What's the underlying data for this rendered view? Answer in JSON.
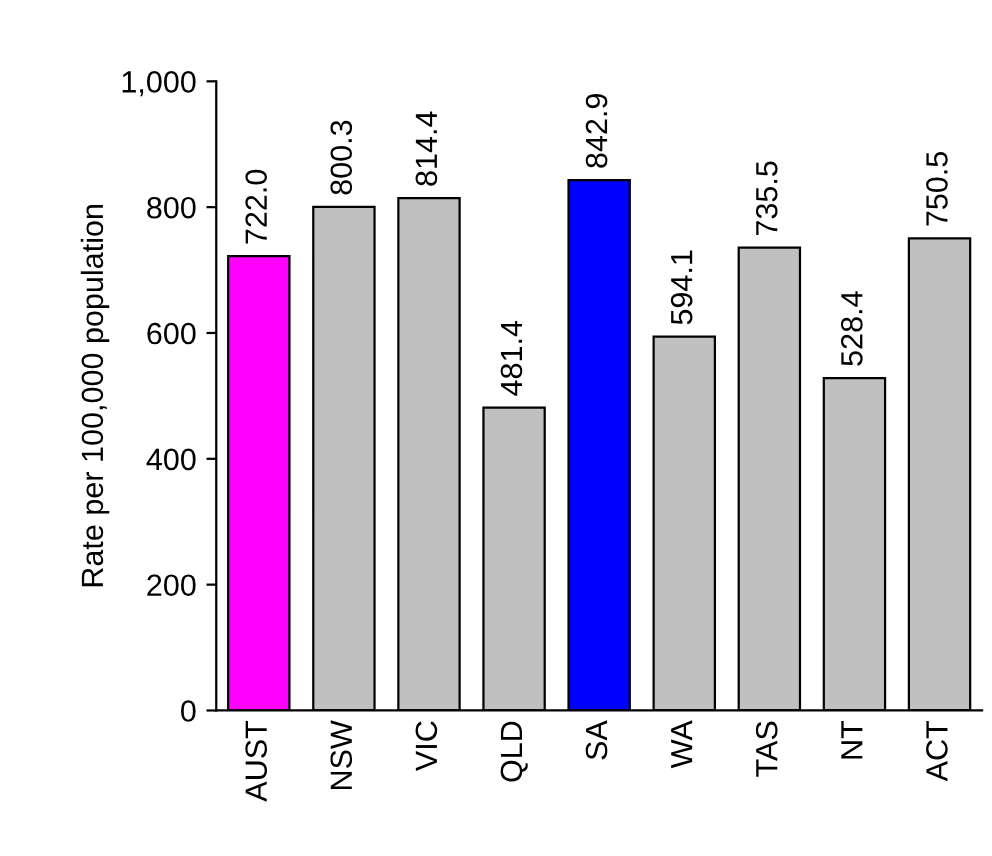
{
  "chart_data": {
    "type": "bar",
    "ylabel": "Rate per 100,000 population",
    "categories": [
      "AUST",
      "NSW",
      "VIC",
      "QLD",
      "SA",
      "WA",
      "TAS",
      "NT",
      "ACT"
    ],
    "values": [
      722.0,
      800.3,
      814.4,
      481.4,
      842.9,
      594.1,
      735.5,
      528.4,
      750.5
    ],
    "value_labels": [
      "722.0",
      "800.3",
      "814.4",
      "481.4",
      "842.9",
      "594.1",
      "735.5",
      "528.4",
      "750.5"
    ],
    "colors": [
      "#ff00ff",
      "#c0c0c0",
      "#c0c0c0",
      "#c0c0c0",
      "#0000ff",
      "#c0c0c0",
      "#c0c0c0",
      "#c0c0c0",
      "#c0c0c0"
    ],
    "ylim": [
      0,
      1000
    ],
    "yticks": [
      0,
      200,
      400,
      600,
      800,
      {
        "value": 1000,
        "label": "1,000"
      }
    ],
    "grid": false,
    "legend": false
  }
}
